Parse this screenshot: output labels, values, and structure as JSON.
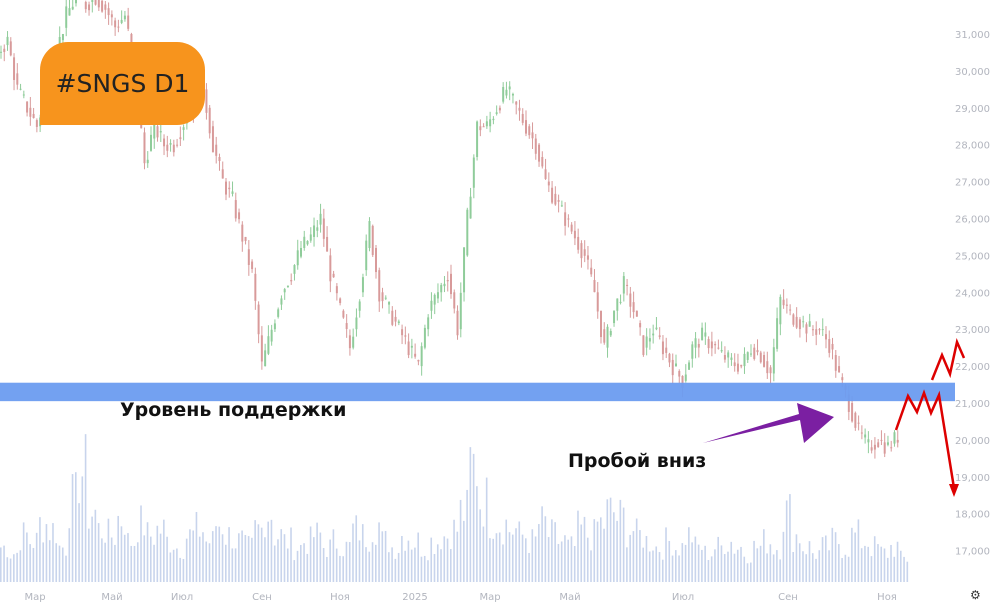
{
  "chart_data": {
    "type": "candlestick",
    "ticker_label": "#SNGS D1",
    "y_ticks": [
      31000,
      30000,
      29000,
      28000,
      27000,
      26000,
      25000,
      24000,
      23000,
      22000,
      21000,
      20000,
      19000,
      18000,
      17000
    ],
    "y_tick_labels": [
      "31,000",
      "30,000",
      "29,000",
      "28,000",
      "27,000",
      "26,000",
      "25,000",
      "24,000",
      "23,000",
      "22,000",
      "21,000",
      "20,000",
      "19,000",
      "18,000",
      "17,000"
    ],
    "ylim": [
      16500,
      31900
    ],
    "x_tick_labels": [
      "Мар",
      "Май",
      "Июл",
      "Сен",
      "Ноя",
      "2025",
      "Мар",
      "Май",
      "Июл",
      "Сен",
      "Ноя"
    ],
    "close": [
      30500,
      30800,
      29500,
      29000,
      28500,
      29500,
      30500,
      31500,
      32000,
      31800,
      32000,
      31700,
      31200,
      31500,
      30000,
      27500,
      28500,
      28000,
      28000,
      28600,
      29000,
      29500,
      28000,
      27000,
      26500,
      25500,
      24500,
      22000,
      23000,
      24000,
      24500,
      25200,
      25500,
      26000,
      24500,
      23500,
      22500,
      24000,
      25800,
      24000,
      23500,
      23000,
      22500,
      22000,
      23500,
      24000,
      24500,
      23000,
      26000,
      28500,
      28500,
      29000,
      29500,
      29000,
      28500,
      28000,
      27000,
      26500,
      26000,
      25500,
      25000,
      24000,
      22500,
      23500,
      24200,
      23500,
      22500,
      23000,
      22500,
      22000,
      21600,
      22500,
      22800,
      22600,
      22300,
      22100,
      22000,
      22500,
      22300,
      21800,
      23800,
      23400,
      23200,
      23000,
      23000,
      22600,
      21700,
      21000,
      20200,
      19800,
      20000,
      19800,
      20100
    ],
    "volume": [
      30,
      25,
      40,
      35,
      50,
      45,
      30,
      70,
      95,
      60,
      45,
      40,
      55,
      35,
      50,
      40,
      45,
      35,
      30,
      40,
      45,
      35,
      50,
      40,
      35,
      30,
      45,
      60,
      40,
      35,
      30,
      35,
      40,
      30,
      35,
      30,
      45,
      40,
      50,
      35,
      30,
      40,
      35,
      30,
      35,
      40,
      45,
      60,
      100,
      70,
      55,
      50,
      45,
      40,
      35,
      50,
      40,
      35,
      30,
      45,
      40,
      50,
      60,
      55,
      45,
      40,
      35,
      30,
      35,
      30,
      40,
      30,
      25,
      30,
      35,
      30,
      25,
      30,
      35,
      30,
      60,
      40,
      30,
      25,
      30,
      35,
      30,
      40,
      35,
      30,
      25,
      30,
      20
    ],
    "support_zone": [
      21050,
      21550
    ],
    "colors": {
      "up": "#8fcc9a",
      "down": "#d89a9a",
      "volume": "#c8d4ec",
      "support": "#6b9cf0",
      "badge": "#f7941d",
      "breakout_arrow": "#7b1fa2",
      "forecast": "#dd0000"
    },
    "annotations": {
      "support_label": "Уровень поддержки",
      "breakout_label": "Пробой вниз"
    }
  }
}
